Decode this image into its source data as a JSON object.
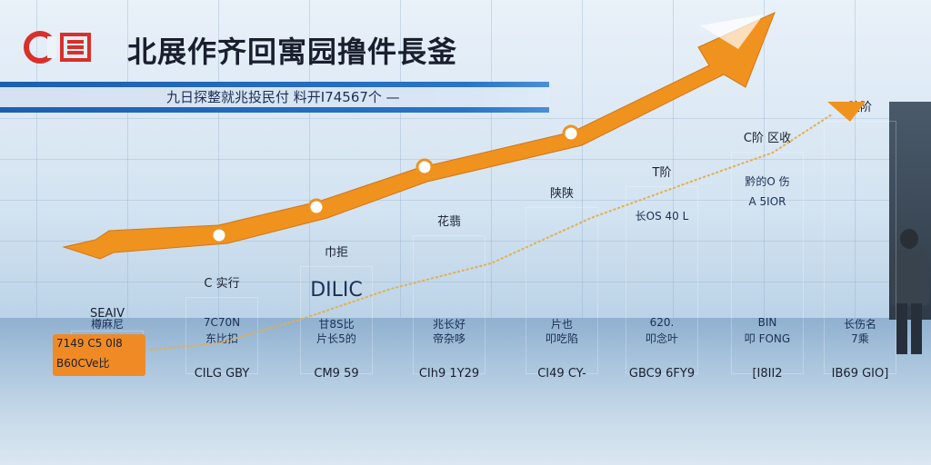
{
  "logo": {
    "text": "C",
    "colors": {
      "ring": "#d8302a",
      "box": "#d8302a"
    }
  },
  "title": "北展作齐回寓园撸件長釜",
  "subtitle": "九日探整就兆投民付 料开I74567个 —",
  "colors": {
    "bar_light": "#2ea3cc",
    "bar_dark": "#1f5bb8",
    "arrow": "#f0921e",
    "band": "#1c5fb0",
    "tag": "#f08a24"
  },
  "chart_data": {
    "type": "bar",
    "categories": [
      "SEAIV",
      "C 实行",
      "DILIC",
      "花翡",
      "陕陕",
      "T阶",
      "C阶 区收",
      "胶阶"
    ],
    "values": [
      14,
      25,
      35,
      45,
      54,
      61,
      72,
      82
    ],
    "ylim": [
      0,
      100
    ],
    "top_labels": [
      "SEAIV",
      "C 实行",
      "巾拒",
      "花翡",
      "陕陕",
      "T阶",
      "C阶 区收",
      "胶阶"
    ],
    "top_label_extra": [
      "",
      "",
      "",
      "",
      "",
      "",
      "C阶 区收",
      "胶阶"
    ],
    "bar_text_top": [
      "",
      "",
      "DILIC",
      "",
      "",
      "",
      "",
      ""
    ],
    "bar_text_mid": [
      "",
      "",
      "",
      "",
      "",
      "长OS 40 L",
      "黔的O 伤",
      ""
    ],
    "bar_text_mid2": [
      "",
      "",
      "",
      "",
      "",
      "",
      "A 5IOR",
      ""
    ],
    "bar_text_low": [
      "樽麻尼",
      "7C70N",
      "甘8S比",
      "兆长好",
      "片也",
      "620.",
      "BIN",
      "长伤名"
    ],
    "bar_text_low2": [
      "",
      "东比扣",
      "片长5的",
      "帝杂哆",
      "叩吃陷",
      "叩念叶",
      "叩 FONG",
      "7乘"
    ],
    "orange_lines": [
      "7149 C5 0l8",
      "B60CVe比"
    ],
    "base_labels": [
      "",
      "CILG GBY",
      "CM9 59",
      "CIh9 1Y29",
      "CI49 CY-",
      "GBC9 6FY9",
      "[I8II2",
      "IB69 GIO]"
    ],
    "trend": {
      "type": "arrow",
      "direction": "up",
      "color": "#f0921e"
    }
  }
}
